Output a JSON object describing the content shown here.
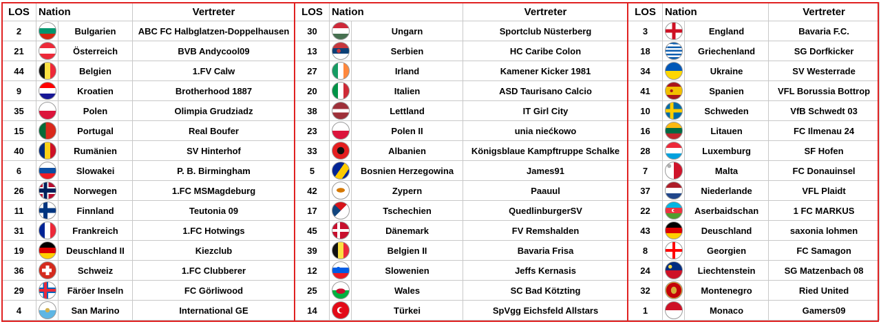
{
  "headers": {
    "los": "LOS",
    "nation": "Nation",
    "rep": "Vertreter"
  },
  "colors": {
    "grid": "#c8c8c8",
    "frame": "#e02020"
  },
  "groups": [
    [
      {
        "los": "2",
        "nation": "Bulgarien",
        "rep": "ABC FC Halbglatzen-Doppelhausen",
        "flag": "bulgaria"
      },
      {
        "los": "21",
        "nation": "Österreich",
        "rep": "BVB Andycool09",
        "flag": "austria"
      },
      {
        "los": "44",
        "nation": "Belgien",
        "rep": "1.FV Calw",
        "flag": "belgium"
      },
      {
        "los": "9",
        "nation": "Kroatien",
        "rep": "Brotherhood 1887",
        "flag": "croatia"
      },
      {
        "los": "35",
        "nation": "Polen",
        "rep": "Olimpia Grudziadz",
        "flag": "poland"
      },
      {
        "los": "15",
        "nation": "Portugal",
        "rep": "Real Boufer",
        "flag": "portugal"
      },
      {
        "los": "40",
        "nation": "Rumänien",
        "rep": "SV Hinterhof",
        "flag": "romania"
      },
      {
        "los": "6",
        "nation": "Slowakei",
        "rep": "P. B. Birmingham",
        "flag": "slovakia"
      },
      {
        "los": "26",
        "nation": "Norwegen",
        "rep": "1.FC MSMagdeburg",
        "flag": "norway"
      },
      {
        "los": "11",
        "nation": "Finnland",
        "rep": "Teutonia 09",
        "flag": "finland"
      },
      {
        "los": "31",
        "nation": "Frankreich",
        "rep": "1.FC Hotwings",
        "flag": "france"
      },
      {
        "los": "19",
        "nation": "Deuschland II",
        "rep": "Kiezclub",
        "flag": "germany"
      },
      {
        "los": "36",
        "nation": "Schweiz",
        "rep": "1.FC Clubberer",
        "flag": "switzerland"
      },
      {
        "los": "29",
        "nation": "Färöer Inseln",
        "rep": "FC Görliwood",
        "flag": "faroe"
      },
      {
        "los": "4",
        "nation": "San Marino",
        "rep": "International GE",
        "flag": "sanmarino"
      }
    ],
    [
      {
        "los": "30",
        "nation": "Ungarn",
        "rep": "Sportclub Nüsterberg",
        "flag": "hungary"
      },
      {
        "los": "13",
        "nation": "Serbien",
        "rep": "HC Caribe Colon",
        "flag": "serbia"
      },
      {
        "los": "27",
        "nation": "Irland",
        "rep": "Kamener Kicker 1981",
        "flag": "ireland"
      },
      {
        "los": "20",
        "nation": "Italien",
        "rep": "ASD Taurisano Calcio",
        "flag": "italy"
      },
      {
        "los": "38",
        "nation": "Lettland",
        "rep": "IT Girl City",
        "flag": "latvia"
      },
      {
        "los": "23",
        "nation": "Polen II",
        "rep": "unia niećkowo",
        "flag": "poland"
      },
      {
        "los": "33",
        "nation": "Albanien",
        "rep": "Königsblaue Kampftruppe Schalke",
        "flag": "albania"
      },
      {
        "los": "5",
        "nation": "Bosnien  Herzegowina",
        "rep": "James91",
        "flag": "bosnia"
      },
      {
        "los": "42",
        "nation": "Zypern",
        "rep": "Paauul",
        "flag": "cyprus"
      },
      {
        "los": "17",
        "nation": "Tschechien",
        "rep": "QuedlinburgerSV",
        "flag": "czech"
      },
      {
        "los": "45",
        "nation": "Dänemark",
        "rep": "FV Remshalden",
        "flag": "denmark"
      },
      {
        "los": "39",
        "nation": "Belgien II",
        "rep": "Bavaria Frisa",
        "flag": "belgium"
      },
      {
        "los": "12",
        "nation": "Slowenien",
        "rep": "Jeffs Kernasis",
        "flag": "slovenia"
      },
      {
        "los": "25",
        "nation": "Wales",
        "rep": "SC Bad Kötzting",
        "flag": "wales"
      },
      {
        "los": "14",
        "nation": "Türkei",
        "rep": "SpVgg Eichsfeld Allstars",
        "flag": "turkey"
      }
    ],
    [
      {
        "los": "3",
        "nation": "England",
        "rep": "Bavaria F.C.",
        "flag": "england"
      },
      {
        "los": "18",
        "nation": "Griechenland",
        "rep": "SG Dorfkicker",
        "flag": "greece"
      },
      {
        "los": "34",
        "nation": "Ukraine",
        "rep": "SV Westerrade",
        "flag": "ukraine"
      },
      {
        "los": "41",
        "nation": "Spanien",
        "rep": "VFL Borussia Bottrop",
        "flag": "spain"
      },
      {
        "los": "10",
        "nation": "Schweden",
        "rep": "VfB Schwedt 03",
        "flag": "sweden"
      },
      {
        "los": "16",
        "nation": "Litauen",
        "rep": "FC Ilmenau 24",
        "flag": "lithuania"
      },
      {
        "los": "28",
        "nation": "Luxemburg",
        "rep": "SF Hofen",
        "flag": "luxembourg"
      },
      {
        "los": "7",
        "nation": "Malta",
        "rep": "FC Donauinsel",
        "flag": "malta"
      },
      {
        "los": "37",
        "nation": "Niederlande",
        "rep": "VFL Plaidt",
        "flag": "netherlands"
      },
      {
        "los": "22",
        "nation": "Aserbaidschan",
        "rep": "1 FC MARKUS",
        "flag": "azerbaijan"
      },
      {
        "los": "43",
        "nation": "Deuschland",
        "rep": "saxonia lohmen",
        "flag": "germany"
      },
      {
        "los": "8",
        "nation": "Georgien",
        "rep": "FC Samagon",
        "flag": "georgia"
      },
      {
        "los": "24",
        "nation": "Liechtenstein",
        "rep": "SG Matzenbach 08",
        "flag": "liechtenstein"
      },
      {
        "los": "32",
        "nation": "Montenegro",
        "rep": "Ried United",
        "flag": "montenegro"
      },
      {
        "los": "1",
        "nation": "Monaco",
        "rep": "Gamers09",
        "flag": "monaco"
      }
    ]
  ]
}
